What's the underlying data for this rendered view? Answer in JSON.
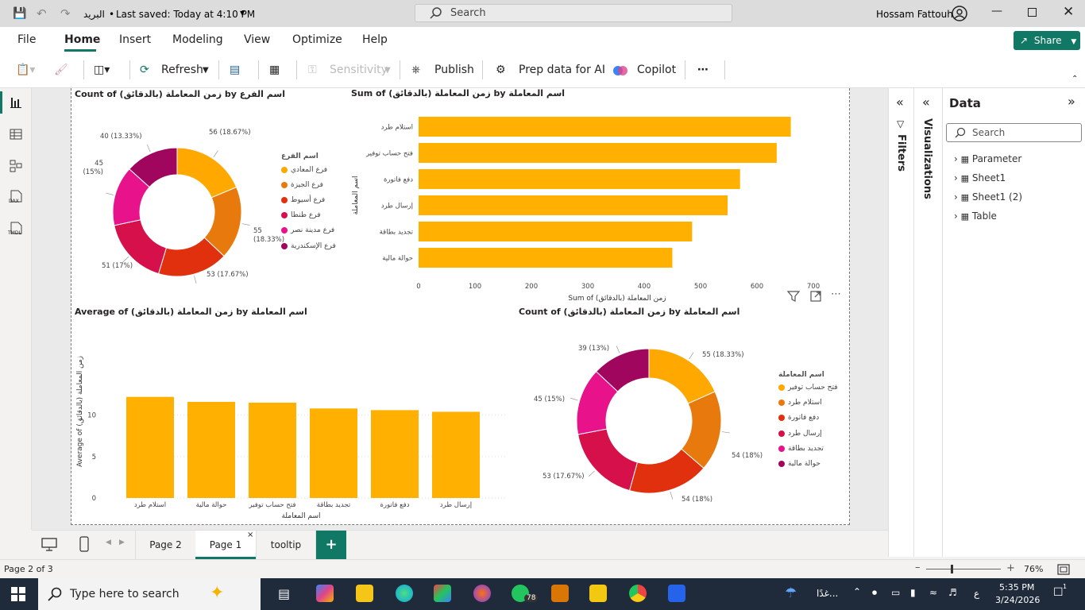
{
  "titlebar": {
    "file_name": "البريد",
    "saved": "Last saved: Today at 4:10 PM",
    "search_placeholder": "Search",
    "user": "Hossam Fattouh"
  },
  "menu": {
    "items": [
      "File",
      "Home",
      "Insert",
      "Modeling",
      "View",
      "Optimize",
      "Help"
    ],
    "share": "Share"
  },
  "ribbon": {
    "refresh": "Refresh",
    "sensitivity": "Sensitivity",
    "publish": "Publish",
    "prep": "Prep data for AI",
    "copilot": "Copilot"
  },
  "leftnav": {
    "dax": "DAX",
    "tmdl": "TMDL"
  },
  "panes": {
    "filters": "Filters",
    "visualizations": "Visualizations",
    "data_title": "Data",
    "data_search_placeholder": "Search",
    "tables": [
      "Parameter",
      "Sheet1",
      "Sheet1 (2)",
      "Table"
    ]
  },
  "pages": {
    "tabs": [
      "Page 2",
      "Page 1",
      "tooltip"
    ],
    "active": "Page 1",
    "add": "+"
  },
  "status": {
    "page": "Page 2 of 3",
    "zoom": "76%"
  },
  "taskbar": {
    "search": "Type here to search",
    "time": "5:35 PM",
    "date": "3/24/2026",
    "weather": "غدًا...",
    "lang": "ع",
    "whatsapp_badge": "78",
    "notify": "1"
  },
  "colors": {
    "yellow": "#FFA800",
    "orange": "#E8790C",
    "red": "#E0300D",
    "crimson": "#D5104A",
    "pink": "#E8128A",
    "purple": "#A0065E",
    "bar": "#FFB000"
  },
  "chart_data": [
    {
      "type": "pie",
      "title": "Count of (بالدقائق) زمن المعاملة by اسم الفرع",
      "legend_title": "اسم الفرع",
      "categories": [
        "فرع المعادي",
        "فرع الجيزة",
        "فرع أسيوط",
        "فرع طنطا",
        "فرع مدينة نصر",
        "فرع الإسكندرية"
      ],
      "values": [
        56,
        55,
        53,
        51,
        45,
        40
      ],
      "labels": [
        "56 (18.67%)",
        "55 (18.33%)",
        "53 (17.67%)",
        "51 (17%)",
        "45 (15%)",
        "40 (13.33%)"
      ]
    },
    {
      "type": "bar",
      "orientation": "horizontal",
      "title": "Sum of (بالدقائق) زمن المعاملة by اسم المعاملة",
      "categories": [
        "استلام طرد",
        "فتح حساب توفير",
        "دفع فاتورة",
        "إرسال طرد",
        "تجديد بطاقة",
        "حوالة مالية"
      ],
      "values": [
        660,
        635,
        570,
        548,
        485,
        450
      ],
      "xlabel": "Sum of (بالدقائق) زمن المعاملة",
      "ylabel": "اسم المعاملة",
      "xticks": [
        "0",
        "100",
        "200",
        "300",
        "400",
        "500",
        "600",
        "700"
      ],
      "xlim": [
        0,
        700
      ]
    },
    {
      "type": "bar",
      "title": "Average of (بالدقائق) زمن المعاملة by اسم المعاملة",
      "categories": [
        "استلام طرد",
        "حوالة مالية",
        "فتح حساب توفير",
        "تجديد بطاقة",
        "دفع فاتورة",
        "إرسال طرد"
      ],
      "values": [
        12.2,
        11.6,
        11.5,
        10.8,
        10.6,
        10.4
      ],
      "xlabel": "اسم المعاملة",
      "ylabel": "Average of (بالدقائق) زمن المعاملة",
      "yticks": [
        "0",
        "5",
        "10"
      ],
      "ylim": [
        0,
        13
      ]
    },
    {
      "type": "pie",
      "title": "Count of (بالدقائق) زمن المعاملة by اسم المعاملة",
      "legend_title": "اسم المعاملة",
      "categories": [
        "فتح حساب توفير",
        "استلام طرد",
        "دفع فاتورة",
        "إرسال طرد",
        "تجديد بطاقة",
        "حوالة مالية"
      ],
      "values": [
        55,
        54,
        54,
        53,
        45,
        39
      ],
      "labels": [
        "55 (18.33%)",
        "54 (18%)",
        "54 (18%)",
        "53 (17.67%)",
        "45 (15%)",
        "39 (13%)"
      ]
    }
  ]
}
